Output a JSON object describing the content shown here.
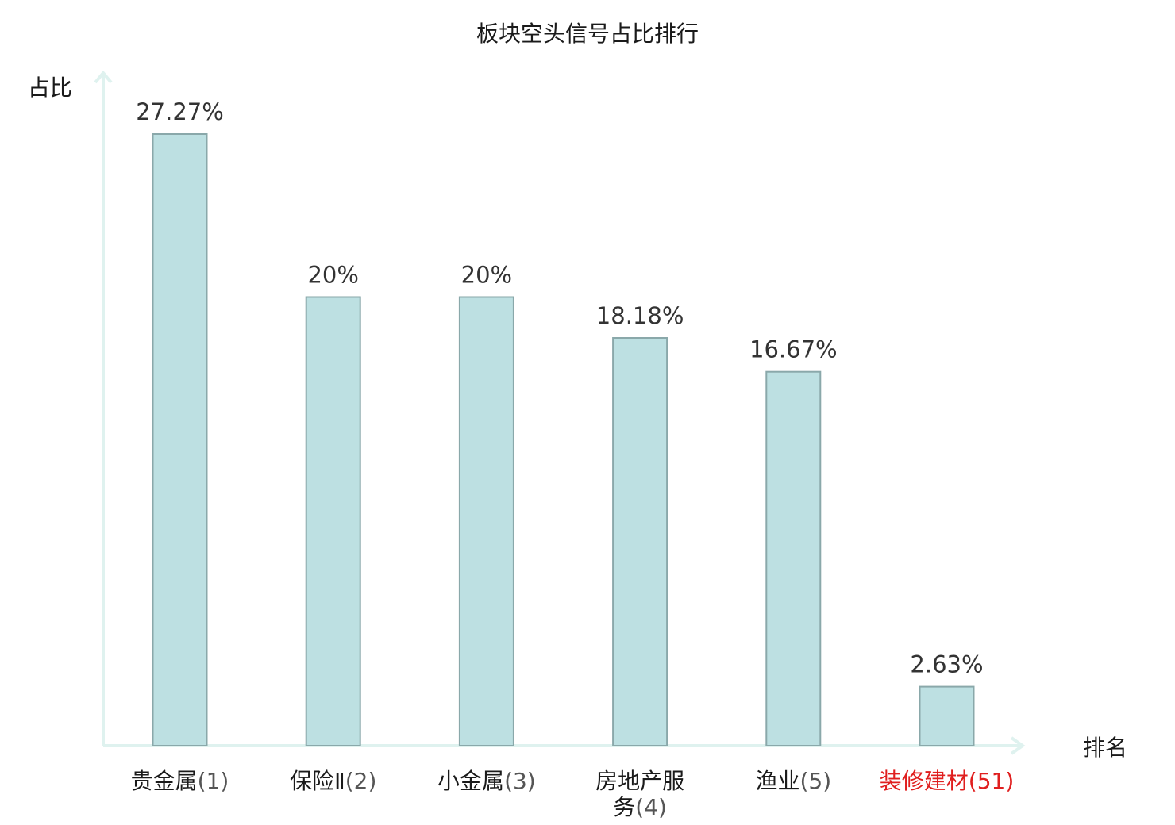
{
  "chart_data": {
    "type": "bar",
    "title": "板块空头信号占比排行",
    "ylabel": "占比",
    "xlabel": "排名",
    "ylim": [
      0,
      30
    ],
    "grid": false,
    "categories": [
      {
        "name": "贵金属",
        "rank": "(1)",
        "lines": [
          "贵金属(1)"
        ],
        "highlight": false
      },
      {
        "name": "保险Ⅱ",
        "rank": "(2)",
        "lines": [
          "保险Ⅱ(2)"
        ],
        "highlight": false
      },
      {
        "name": "小金属",
        "rank": "(3)",
        "lines": [
          "小金属(3)"
        ],
        "highlight": false
      },
      {
        "name": "房地产服务",
        "rank": "(4)",
        "lines": [
          "房地产服",
          "务(4)"
        ],
        "highlight": false
      },
      {
        "name": "渔业",
        "rank": "(5)",
        "lines": [
          "渔业(5)"
        ],
        "highlight": false
      },
      {
        "name": "装修建材",
        "rank": "(51)",
        "lines": [
          "装修建材(51)"
        ],
        "highlight": true
      }
    ],
    "values": [
      27.27,
      20,
      20,
      18.18,
      16.67,
      2.63
    ],
    "value_labels": [
      "27.27%",
      "20%",
      "20%",
      "18.18%",
      "16.67%",
      "2.63%"
    ],
    "colors": {
      "bar_fill": "#bde0e2",
      "bar_stroke": "#8aa8aa",
      "axis": "#dff2ef",
      "highlight": "#e01f1f"
    }
  }
}
